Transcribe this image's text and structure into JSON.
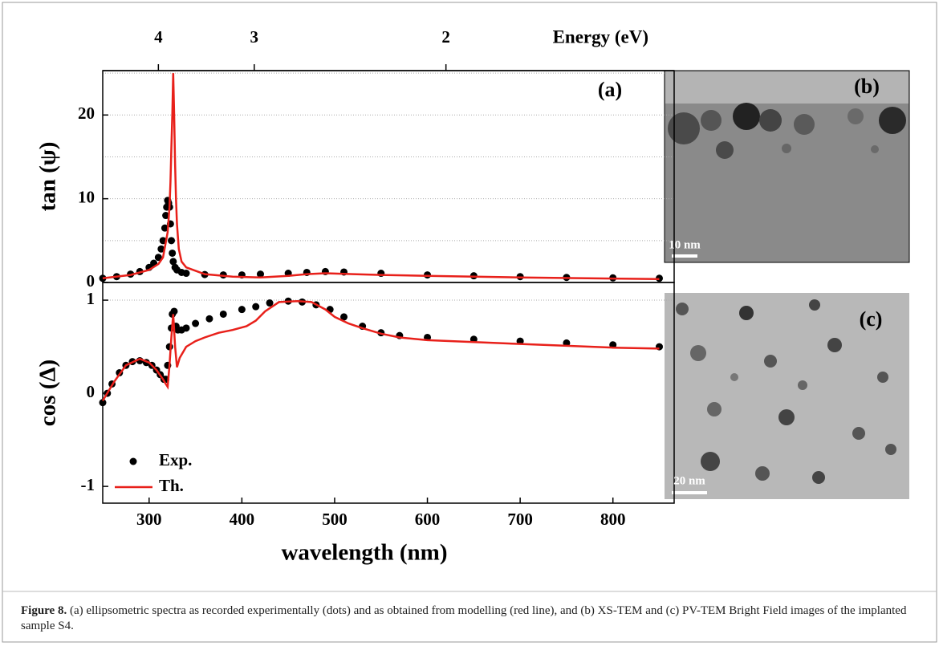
{
  "chart_data": [
    {
      "type": "line",
      "panel_label": "(a)",
      "ylabel": "tan (ψ)",
      "x2label": "Energy (eV)",
      "x2ticks": [
        4,
        3,
        2
      ],
      "xlim": [
        250,
        866
      ],
      "ylim": [
        0,
        25.3
      ],
      "yticks": [
        0,
        10,
        20
      ],
      "ygrid": [
        5,
        10,
        15,
        20,
        25
      ],
      "series": [
        {
          "kind": "scatter",
          "color": "#000000",
          "x": [
            250,
            265,
            280,
            290,
            300,
            305,
            310,
            313,
            315,
            317,
            318,
            319,
            320,
            321,
            322,
            323,
            324,
            325,
            326,
            328,
            330,
            335,
            340,
            360,
            380,
            400,
            420,
            450,
            470,
            490,
            510,
            550,
            600,
            650,
            700,
            750,
            800,
            850
          ],
          "values": [
            0.5,
            0.7,
            1,
            1.3,
            1.8,
            2.3,
            3,
            4,
            5,
            6.5,
            8,
            9,
            9.8,
            9.5,
            9,
            7,
            5,
            3.5,
            2.5,
            1.8,
            1.5,
            1.2,
            1.1,
            0.95,
            0.9,
            0.9,
            1,
            1.1,
            1.2,
            1.3,
            1.25,
            1.1,
            0.9,
            0.8,
            0.7,
            0.6,
            0.55,
            0.5
          ]
        },
        {
          "kind": "line",
          "color": "#e8201a",
          "x": [
            250,
            280,
            300,
            310,
            315,
            320,
            322,
            323,
            324,
            325,
            326,
            327,
            328,
            329,
            330,
            332,
            335,
            340,
            360,
            390,
            420,
            450,
            470,
            490,
            520,
            550,
            600,
            700,
            850
          ],
          "values": [
            0.5,
            0.9,
            1.5,
            2.2,
            3,
            6,
            9,
            12,
            16,
            20,
            25,
            20,
            14,
            10,
            7,
            4,
            2.5,
            1.8,
            1,
            0.7,
            0.6,
            0.8,
            1,
            1.1,
            1,
            0.9,
            0.8,
            0.6,
            0.4
          ]
        }
      ]
    },
    {
      "type": "line",
      "ylabel": "cos (Δ)",
      "xlabel": "wavelength (nm)",
      "legend": "lower left",
      "xlim": [
        250,
        866
      ],
      "ylim": [
        -1.18,
        1.19
      ],
      "xticks": [
        300,
        400,
        500,
        600,
        700,
        800
      ],
      "yticks": [
        -1,
        0,
        1
      ],
      "ygrid": [
        1
      ],
      "series": [
        {
          "name": "Exp.",
          "kind": "scatter",
          "color": "#000000",
          "x": [
            250,
            255,
            260,
            268,
            275,
            282,
            290,
            297,
            303,
            308,
            312,
            316,
            318,
            320,
            322,
            324,
            325,
            327,
            329,
            331,
            335,
            340,
            350,
            365,
            380,
            400,
            415,
            430,
            450,
            465,
            480,
            495,
            510,
            530,
            550,
            570,
            600,
            650,
            700,
            750,
            800,
            850
          ],
          "values": [
            -0.1,
            0,
            0.1,
            0.22,
            0.3,
            0.34,
            0.35,
            0.33,
            0.3,
            0.25,
            0.2,
            0.15,
            0.15,
            0.3,
            0.5,
            0.7,
            0.85,
            0.88,
            0.72,
            0.68,
            0.68,
            0.7,
            0.75,
            0.8,
            0.85,
            0.9,
            0.93,
            0.97,
            0.99,
            0.98,
            0.95,
            0.9,
            0.82,
            0.72,
            0.65,
            0.62,
            0.6,
            0.58,
            0.56,
            0.54,
            0.52,
            0.5
          ]
        },
        {
          "name": "Th.",
          "kind": "line",
          "color": "#e8201a",
          "x": [
            250,
            262,
            275,
            290,
            300,
            308,
            315,
            318,
            320,
            322,
            324,
            326,
            328,
            330,
            333,
            340,
            350,
            360,
            375,
            390,
            405,
            415,
            425,
            440,
            460,
            475,
            490,
            500,
            515,
            530,
            550,
            570,
            600,
            650,
            700,
            750,
            800,
            850
          ],
          "values": [
            -0.08,
            0.12,
            0.3,
            0.37,
            0.33,
            0.25,
            0.15,
            0.1,
            0.07,
            0.3,
            0.6,
            0.85,
            0.5,
            0.28,
            0.38,
            0.5,
            0.56,
            0.6,
            0.65,
            0.68,
            0.72,
            0.78,
            0.88,
            0.98,
            0.99,
            0.98,
            0.9,
            0.82,
            0.75,
            0.7,
            0.64,
            0.6,
            0.57,
            0.55,
            0.53,
            0.51,
            0.49,
            0.48
          ]
        }
      ]
    }
  ],
  "images": [
    {
      "label": "(b)",
      "scale_bar": "10 nm"
    },
    {
      "label": "(c)",
      "scale_bar": "20 nm"
    }
  ],
  "caption": {
    "label": "Figure 8.",
    "text": "(a) ellipsometric spectra as recorded experimentally (dots) and as obtained from modelling (red line), and (b) XS-TEM and (c) PV-TEM Bright Field images of the implanted sample S4."
  }
}
